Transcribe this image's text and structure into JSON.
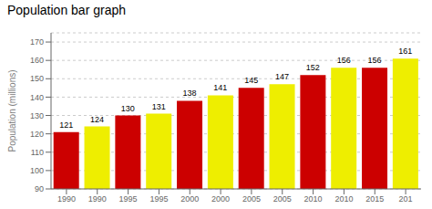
{
  "chart_data": {
    "type": "bar",
    "title": "Population bar graph",
    "ylabel": "Population (millions)",
    "categories": [
      "1990",
      "1990",
      "1995",
      "1995",
      "2000",
      "2000",
      "2005",
      "2005",
      "2010",
      "2010",
      "2015",
      "201"
    ],
    "values": [
      121,
      124,
      130,
      131,
      138,
      141,
      145,
      147,
      152,
      156,
      156,
      161
    ],
    "colors": [
      "#cc0000",
      "#eeee00",
      "#cc0000",
      "#eeee00",
      "#cc0000",
      "#eeee00",
      "#cc0000",
      "#eeee00",
      "#cc0000",
      "#eeee00",
      "#cc0000",
      "#eeee00"
    ],
    "ylim": [
      90,
      175
    ],
    "yticks": [
      90,
      100,
      110,
      120,
      130,
      140,
      150,
      160,
      170
    ],
    "grid": true,
    "data_labels": true
  }
}
